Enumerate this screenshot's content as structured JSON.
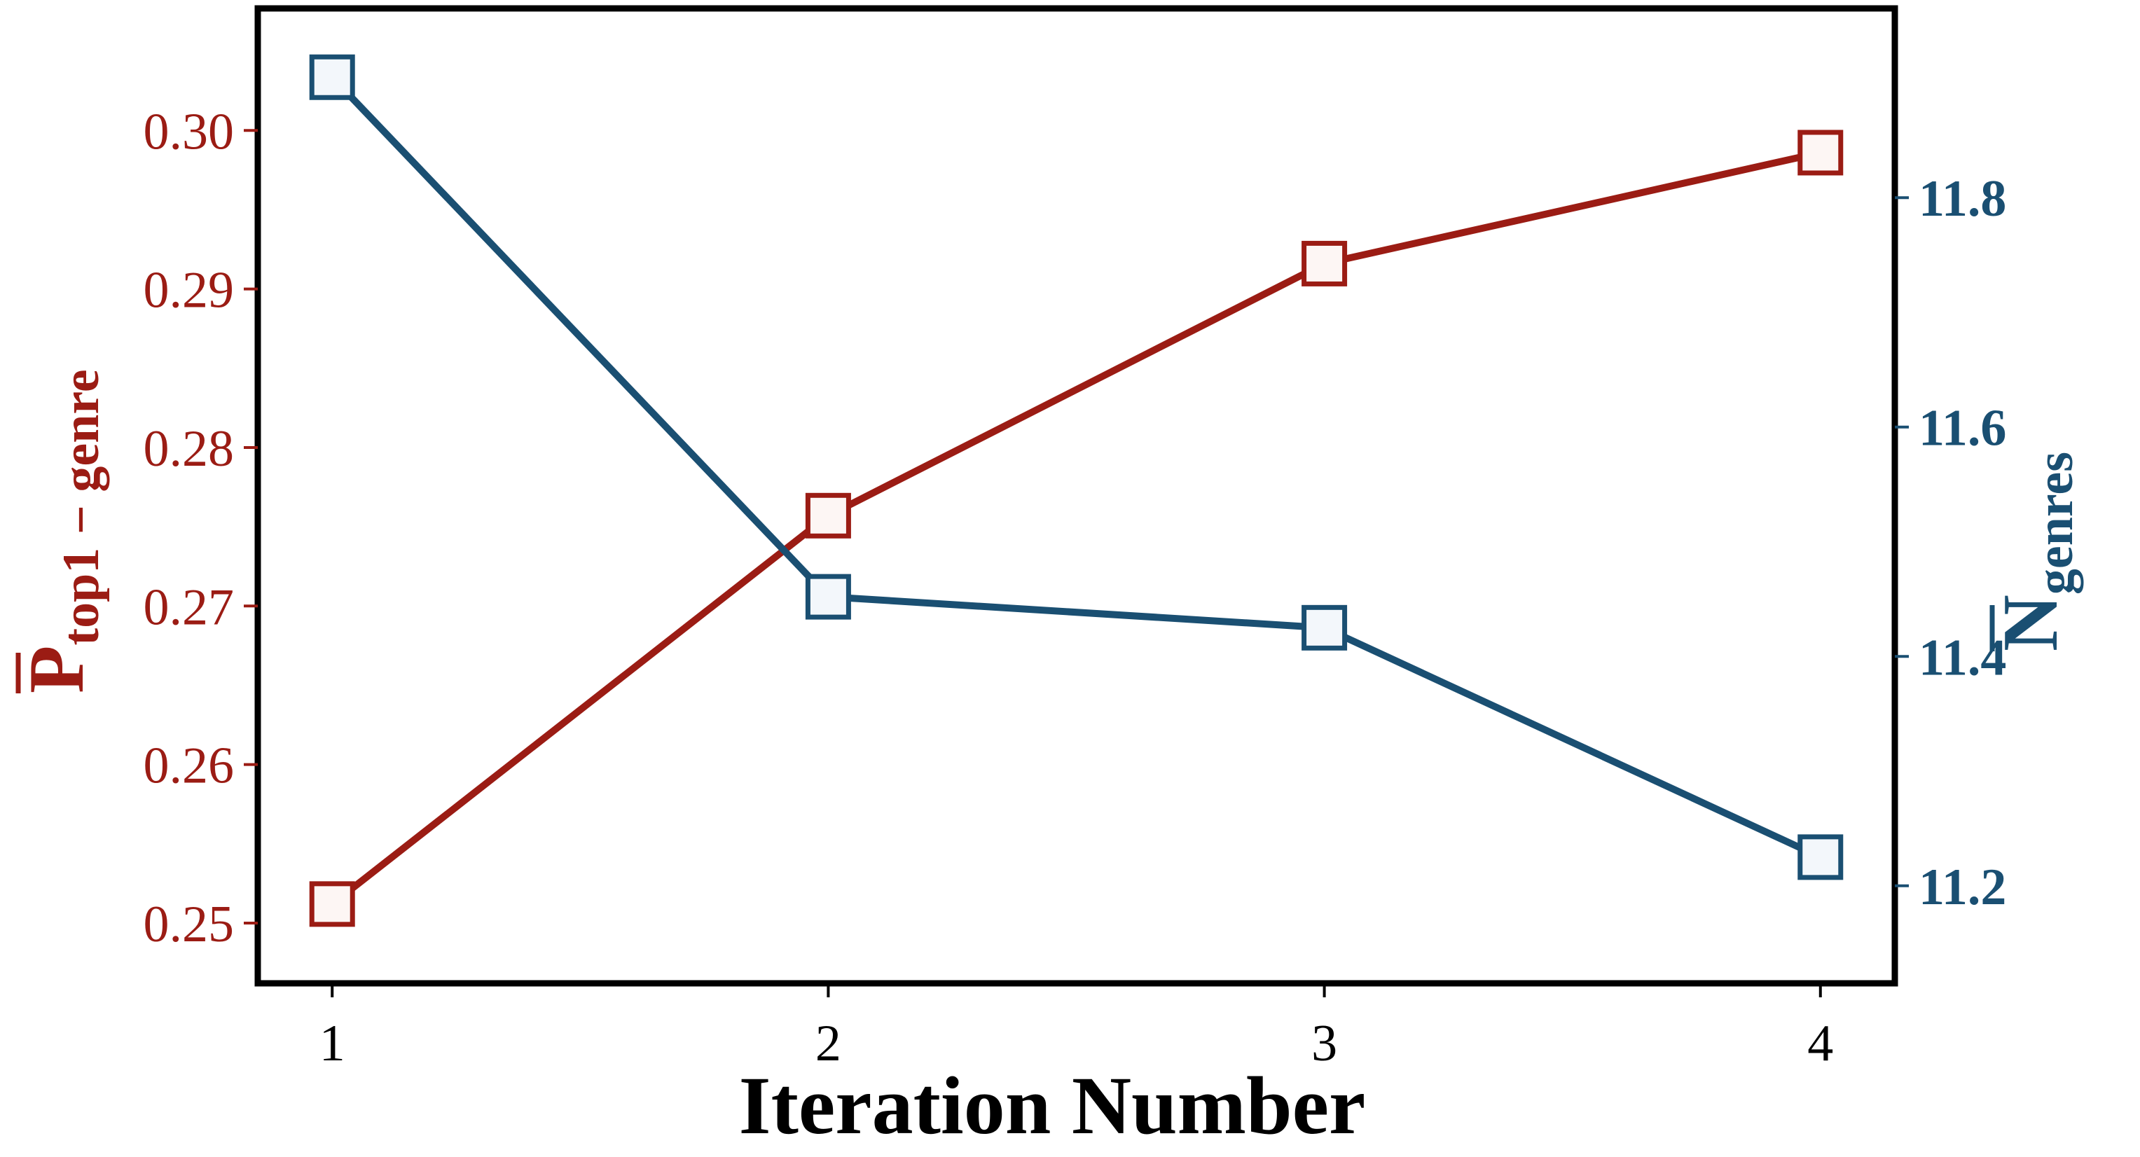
{
  "chart_data": {
    "type": "line",
    "x": [
      1,
      2,
      3,
      4
    ],
    "xlabel": "Iteration Number",
    "xticks": [
      "1",
      "2",
      "3",
      "4"
    ],
    "xlim": [
      0.85,
      4.15
    ],
    "left_axis": {
      "label_main": "P",
      "label_sub": "top1 − genre",
      "color": "#9b1c14",
      "ticks": [
        "0.25",
        "0.26",
        "0.27",
        "0.28",
        "0.29",
        "0.30"
      ],
      "ylim": [
        0.2462,
        0.3077
      ]
    },
    "right_axis": {
      "label_main": "N",
      "label_sub": "genres",
      "color": "#1a4f72",
      "ticks": [
        "11.2",
        "11.4",
        "11.6",
        "11.8"
      ],
      "ylim": [
        11.115,
        11.965
      ]
    },
    "series": [
      {
        "axis": "left",
        "color": "#9b1c14",
        "marker_fill": "#fdf6f4",
        "values": [
          0.2512,
          0.2757,
          0.2916,
          0.2986
        ]
      },
      {
        "axis": "right",
        "color": "#1a4f72",
        "marker_fill": "#f3f7fb",
        "values": [
          11.905,
          11.452,
          11.425,
          11.225
        ]
      }
    ]
  }
}
